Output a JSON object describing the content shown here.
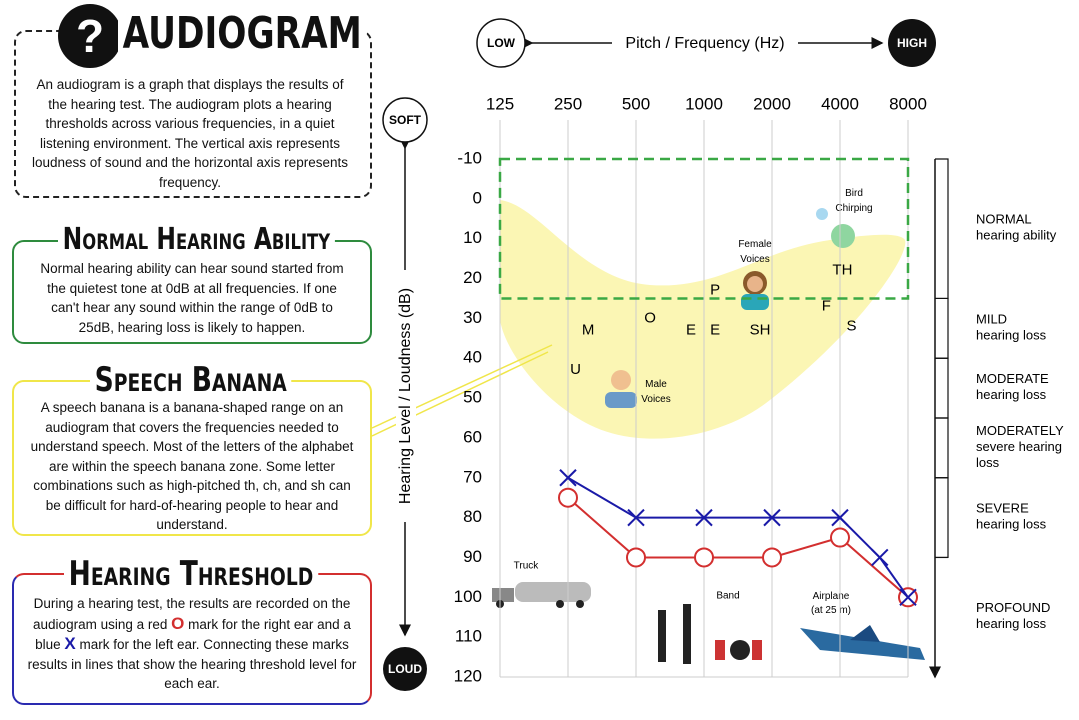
{
  "header": {
    "title": "AUDIOGRAM",
    "text": "An audiogram is a graph that displays the results of the hearing test. The audiogram plots a hearing thresholds across various frequencies, in a quiet listening environment. The vertical axis represents loudness of sound and the horizontal axis represents frequency."
  },
  "normal": {
    "title": "Normal Hearing Ability",
    "text": "Normal hearing ability can hear sound started from the quietest tone at 0dB at all frequencies. If one can't hear any sound within the range of 0dB to 25dB, hearing loss is likely to happen."
  },
  "banana": {
    "title": "Speech Banana",
    "text": "A speech banana is a banana-shaped range on an audiogram that covers the frequencies needed to understand speech. Most of the letters of the alphabet are within the speech banana zone. Some letter combinations such as high-pitched th, ch, and sh can be difficult for hard-of-hearing people to hear and understand."
  },
  "threshold": {
    "title": "Hearing Threshold",
    "text_parts": [
      "During a hearing test, the results are recorded on the audiogram using a red ",
      "O",
      " mark for the right ear and a blue ",
      "X",
      " mark for the left ear. Connecting these marks results in lines that show the hearing threshold level for each ear."
    ]
  },
  "pictures": [
    {
      "label": [
        "Bird",
        "Chirping"
      ]
    },
    {
      "label": [
        "Female",
        "Voices"
      ]
    },
    {
      "label": [
        "Male",
        "Voices"
      ]
    },
    {
      "label": [
        "Truck"
      ]
    },
    {
      "label": [
        "Band"
      ]
    },
    {
      "label": [
        "Airplane",
        "(at 25 m)"
      ]
    }
  ],
  "chart_data": {
    "type": "line",
    "x_label": "Pitch / Frequency (Hz)",
    "x_low": "LOW",
    "x_high": "HIGH",
    "y_label": "Hearing Level / Loudness (dB)",
    "y_low": "SOFT",
    "y_high": "LOUD",
    "log_x": true,
    "y_inverted": true,
    "xlim": [
      125,
      8000
    ],
    "xticks": [
      125,
      250,
      500,
      1000,
      2000,
      4000,
      8000
    ],
    "ylim": [
      -10,
      120
    ],
    "yticks": [
      -10,
      0,
      10,
      20,
      30,
      40,
      50,
      60,
      70,
      80,
      90,
      100,
      110,
      120
    ],
    "grid": true,
    "normal_range": {
      "color": "#3aa845",
      "ylim": [
        -10,
        25
      ]
    },
    "series": [
      {
        "color": "#d32f2f",
        "marker": "circle",
        "x": [
          250,
          500,
          1000,
          2000,
          4000,
          8000
        ],
        "values": [
          75,
          90,
          90,
          90,
          85,
          100
        ]
      },
      {
        "color": "#1a1aa8",
        "marker": "cross",
        "x": [
          250,
          500,
          1000,
          2000,
          4000,
          6000,
          8000
        ],
        "values": [
          70,
          80,
          80,
          80,
          80,
          90,
          100
        ]
      }
    ],
    "sounds": [
      {
        "label": "M",
        "x": 307,
        "y": 33
      },
      {
        "label": "O",
        "x": 577,
        "y": 30
      },
      {
        "label": "E",
        "x": 876,
        "y": 33
      },
      {
        "label": "E",
        "x": 1120,
        "y": 33
      },
      {
        "label": "SH",
        "x": 1770,
        "y": 33
      },
      {
        "label": "P",
        "x": 1120,
        "y": 23
      },
      {
        "label": "F",
        "x": 3480,
        "y": 27
      },
      {
        "label": "S",
        "x": 4500,
        "y": 32
      },
      {
        "label": "TH",
        "x": 4100,
        "y": 18
      },
      {
        "label": "U",
        "x": 270,
        "y": 43
      }
    ],
    "hearing_levels": [
      {
        "label": [
          "NORMAL",
          "hearing ability"
        ],
        "from": -10,
        "to": 25
      },
      {
        "label": [
          "MILD",
          "hearing loss"
        ],
        "from": 25,
        "to": 40
      },
      {
        "label": [
          "MODERATE",
          "hearing loss"
        ],
        "from": 40,
        "to": 55
      },
      {
        "label": [
          "MODERATELY",
          "severe hearing",
          "loss"
        ],
        "from": 55,
        "to": 70
      },
      {
        "label": [
          "SEVERE",
          "hearing loss"
        ],
        "from": 70,
        "to": 90
      },
      {
        "label": [
          "PROFOUND",
          "hearing loss"
        ],
        "from": 90,
        "to": 120
      }
    ]
  }
}
